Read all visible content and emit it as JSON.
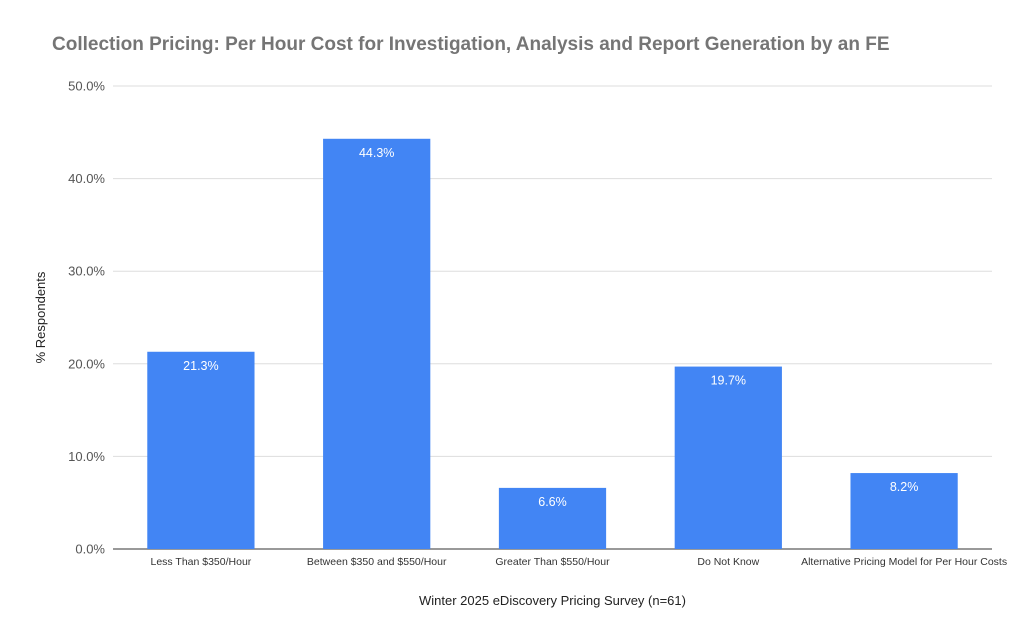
{
  "chart_data": {
    "type": "bar",
    "title": "Collection Pricing: Per Hour Cost for Investigation, Analysis and Report Generation by an FE",
    "xlabel": "Winter 2025 eDiscovery Pricing Survey (n=61)",
    "ylabel": "% Respondents",
    "categories": [
      "Less Than $350/Hour",
      "Between $350 and $550/Hour",
      "Greater Than $550/Hour",
      "Do Not Know",
      "Alternative Pricing Model for Per Hour Costs"
    ],
    "values": [
      21.3,
      44.3,
      6.6,
      19.7,
      8.2
    ],
    "data_labels": [
      "21.3%",
      "44.3%",
      "6.6%",
      "19.7%",
      "8.2%"
    ],
    "ylim": [
      0,
      50
    ],
    "yticks": [
      0,
      10,
      20,
      30,
      40,
      50
    ],
    "ytick_labels": [
      "0.0%",
      "10.0%",
      "20.0%",
      "30.0%",
      "40.0%",
      "50.0%"
    ],
    "grid": true,
    "legend": "none",
    "bar_color": "#4285f4"
  }
}
